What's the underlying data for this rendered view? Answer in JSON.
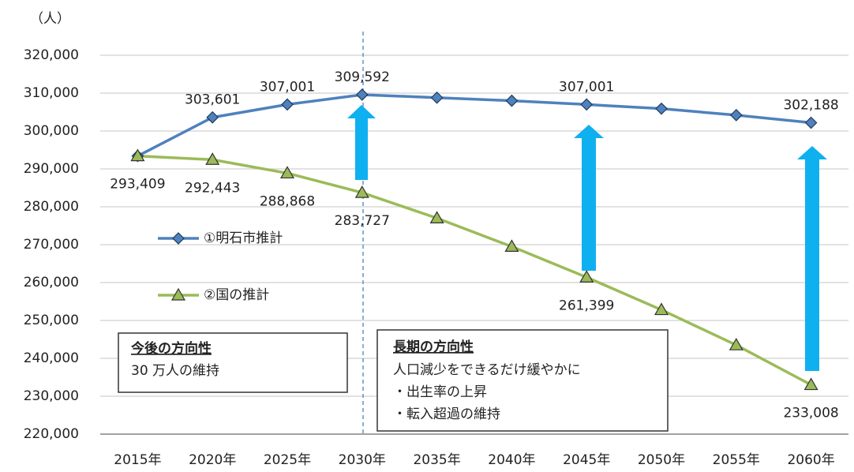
{
  "chart_data": {
    "type": "line",
    "y_axis_label": "（人）",
    "categories": [
      "2015年",
      "2020年",
      "2025年",
      "2030年",
      "2035年",
      "2040年",
      "2045年",
      "2050年",
      "2055年",
      "2060年"
    ],
    "series": [
      {
        "name": "①明石市推計",
        "color": "#4f81bd",
        "marker": "diamond",
        "values": [
          293409,
          303601,
          307001,
          309592,
          308800,
          308000,
          307001,
          305900,
          304200,
          302188
        ],
        "value_labels": [
          null,
          "303,601",
          "307,001",
          "309,592",
          null,
          null,
          "307,001",
          null,
          null,
          "302,188"
        ]
      },
      {
        "name": "②国の推計",
        "color": "#9bbb59",
        "marker": "triangle",
        "values": [
          293409,
          292443,
          288868,
          283727,
          277000,
          269500,
          261399,
          252800,
          243500,
          233008
        ],
        "value_labels": [
          "293,409",
          "292,443",
          "288,868",
          "283,727",
          null,
          null,
          "261,399",
          null,
          null,
          "233,008"
        ]
      }
    ],
    "ylim": [
      220000,
      320000
    ],
    "yticks": [
      {
        "value": 220000,
        "label": "220,000"
      },
      {
        "value": 230000,
        "label": "230,000"
      },
      {
        "value": 240000,
        "label": "240,000"
      },
      {
        "value": 250000,
        "label": "250,000"
      },
      {
        "value": 260000,
        "label": "260,000"
      },
      {
        "value": 270000,
        "label": "270,000"
      },
      {
        "value": 280000,
        "label": "280,000"
      },
      {
        "value": 290000,
        "label": "290,000"
      },
      {
        "value": 300000,
        "label": "300,000"
      },
      {
        "value": 310000,
        "label": "310,000"
      },
      {
        "value": 320000,
        "label": "320,000"
      }
    ],
    "grid": true,
    "annotations": [
      {
        "title": "今後の方向性",
        "lines": [
          "30 万人の維持"
        ]
      },
      {
        "title": "長期の方向性",
        "lines": [
          "人口減少をできるだけ緩やかに",
          "・出生率の上昇",
          "・転入超過の維持"
        ]
      }
    ]
  }
}
